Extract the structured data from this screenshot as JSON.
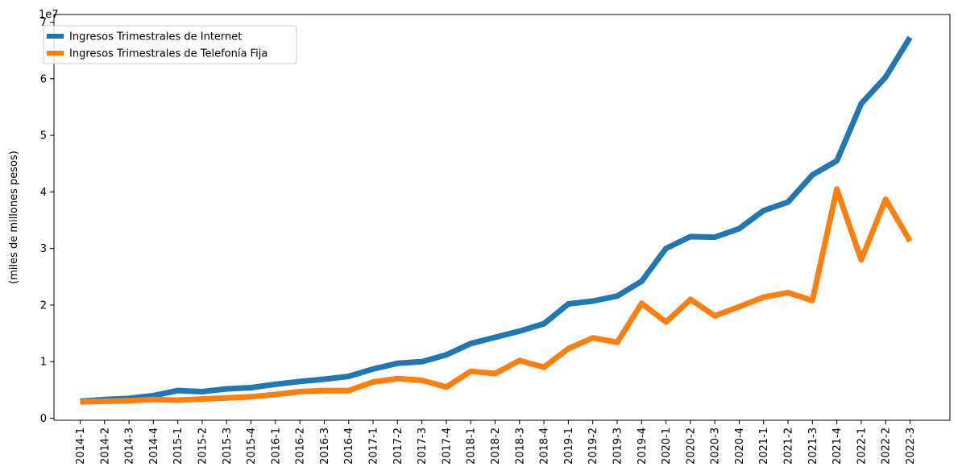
{
  "chart_data": {
    "type": "line",
    "ylabel": "(miles de millones pesos)",
    "y_multiplier_label": "1e7",
    "ylim": [
      0,
      70000000
    ],
    "yticks": [
      0,
      10000000,
      20000000,
      30000000,
      40000000,
      50000000,
      60000000,
      70000000
    ],
    "ytick_labels": [
      "0",
      "1",
      "2",
      "3",
      "4",
      "5",
      "6",
      "7"
    ],
    "categories": [
      "2014-1",
      "2014-2",
      "2014-3",
      "2014-4",
      "2015-1",
      "2015-2",
      "2015-3",
      "2015-4",
      "2016-1",
      "2016-2",
      "2016-3",
      "2016-4",
      "2017-1",
      "2017-2",
      "2017-3",
      "2017-4",
      "2018-1",
      "2018-2",
      "2018-3",
      "2018-4",
      "2019-1",
      "2019-2",
      "2019-3",
      "2019-4",
      "2020-1",
      "2020-2",
      "2020-3",
      "2020-4",
      "2021-1",
      "2021-2",
      "2021-3",
      "2021-4",
      "2022-1",
      "2022-2",
      "2022-3"
    ],
    "legend_position": "top-left",
    "grid": false,
    "series": [
      {
        "name": "Ingresos Trimestrales de Internet",
        "color": "#1f77b4",
        "values": [
          3000000,
          3300000,
          3500000,
          4000000,
          4900000,
          4700000,
          5200000,
          5400000,
          6000000,
          6500000,
          6900000,
          7400000,
          8700000,
          9700000,
          10000000,
          11200000,
          13200000,
          14300000,
          15400000,
          16700000,
          20200000,
          20700000,
          21600000,
          24200000,
          30000000,
          32100000,
          32000000,
          33500000,
          36700000,
          38200000,
          43000000,
          45500000,
          55600000,
          60300000,
          67300000
        ]
      },
      {
        "name": "Ingresos Trimestrales de Telefonía Fija",
        "color": "#ff7f0e",
        "values": [
          2900000,
          3000000,
          3100000,
          3300000,
          3200000,
          3400000,
          3600000,
          3800000,
          4200000,
          4700000,
          4900000,
          4900000,
          6400000,
          7000000,
          6700000,
          5500000,
          8300000,
          7900000,
          10200000,
          9000000,
          12300000,
          14200000,
          13400000,
          20300000,
          17000000,
          21000000,
          18100000,
          19700000,
          21400000,
          22200000,
          20800000,
          40500000,
          28000000,
          38700000,
          31300000
        ]
      }
    ]
  }
}
